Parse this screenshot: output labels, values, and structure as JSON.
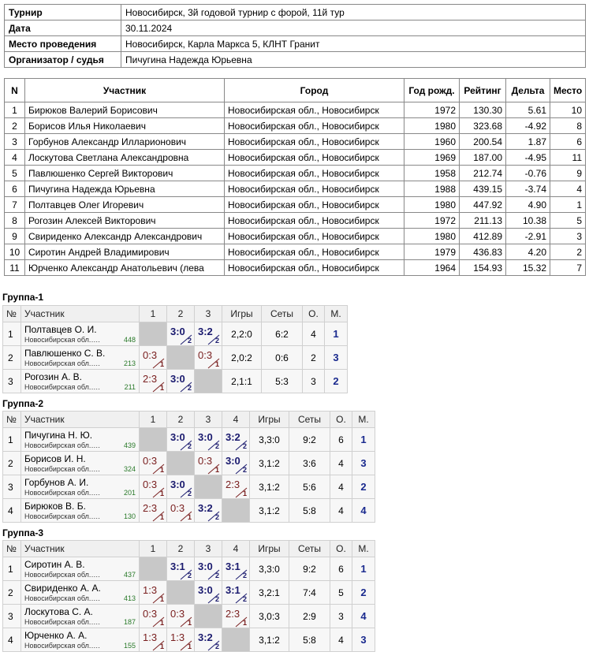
{
  "info": {
    "rows": [
      [
        "Турнир",
        "Новосибирск, 3й годовой турнир с форой, 11й тур"
      ],
      [
        "Дата",
        "30.11.2024"
      ],
      [
        "Место проведения",
        "Новосибирск, Карла Маркса 5, КЛНТ Гранит"
      ],
      [
        "Организатор / судья",
        "Пичугина Надежда Юрьевна"
      ]
    ]
  },
  "players": {
    "header": [
      "N",
      "Участник",
      "Город",
      "Год рожд.",
      "Рейтинг",
      "Дельта",
      "Место"
    ],
    "rows": [
      [
        "1",
        "Бирюков Валерий Борисович",
        "Новосибирская обл., Новосибирск",
        "1972",
        "130.30",
        "5.61",
        "10"
      ],
      [
        "2",
        "Борисов Илья Николаевич",
        "Новосибирская обл., Новосибирск",
        "1980",
        "323.68",
        "-4.92",
        "8"
      ],
      [
        "3",
        "Горбунов Александр Илларионович",
        "Новосибирская обл., Новосибирск",
        "1960",
        "200.54",
        "1.87",
        "6"
      ],
      [
        "4",
        "Лоскутова Светлана Александровна",
        "Новосибирская обл., Новосибирск",
        "1969",
        "187.00",
        "-4.95",
        "11"
      ],
      [
        "5",
        "Павлюшенко Сергей Викторович",
        "Новосибирская обл., Новосибирск",
        "1958",
        "212.74",
        "-0.76",
        "9"
      ],
      [
        "6",
        "Пичугина Надежда Юрьевна",
        "Новосибирская обл., Новосибирск",
        "1988",
        "439.15",
        "-3.74",
        "4"
      ],
      [
        "7",
        "Полтавцев Олег Игоревич",
        "Новосибирская обл., Новосибирск",
        "1980",
        "447.92",
        "4.90",
        "1"
      ],
      [
        "8",
        "Рогозин Алексей Викторович",
        "Новосибирская обл., Новосибирск",
        "1972",
        "211.13",
        "10.38",
        "5"
      ],
      [
        "9",
        "Свириденко Александр Александрович",
        "Новосибирская обл., Новосибирск",
        "1980",
        "412.89",
        "-2.91",
        "3"
      ],
      [
        "10",
        "Сиротин Андрей Владимирович",
        "Новосибирская обл., Новосибирск",
        "1979",
        "436.83",
        "4.20",
        "2"
      ],
      [
        "11",
        "Юрченко Александр Анатольевич (лева",
        "Новосибирская обл., Новосибирск",
        "1964",
        "154.93",
        "15.32",
        "7"
      ]
    ]
  },
  "groups": [
    {
      "title": "Группа-1",
      "header": [
        "№",
        "Участник",
        "1",
        "2",
        "3",
        "Игры",
        "Сеты",
        "О.",
        "М."
      ],
      "rows": [
        {
          "n": "1",
          "name": "Полтавцев О. И.",
          "city": "Новосибирская обл.….",
          "rating": "448",
          "cells": [
            null,
            {
              "score": "3:0",
              "points": 2
            },
            {
              "score": "3:2",
              "points": 2
            }
          ],
          "games": "2,2:0",
          "sets": "6:2",
          "points": "4",
          "place": "1"
        },
        {
          "n": "2",
          "name": "Павлюшенко С. В.",
          "city": "Новосибирская обл.….",
          "rating": "213",
          "cells": [
            {
              "score": "0:3",
              "points": 1
            },
            null,
            {
              "score": "0:3",
              "points": 1
            }
          ],
          "games": "2,0:2",
          "sets": "0:6",
          "points": "2",
          "place": "3"
        },
        {
          "n": "3",
          "name": "Рогозин А. В.",
          "city": "Новосибирская обл.….",
          "rating": "211",
          "cells": [
            {
              "score": "2:3",
              "points": 1
            },
            {
              "score": "3:0",
              "points": 2
            },
            null
          ],
          "games": "2,1:1",
          "sets": "5:3",
          "points": "3",
          "place": "2"
        }
      ]
    },
    {
      "title": "Группа-2",
      "header": [
        "№",
        "Участник",
        "1",
        "2",
        "3",
        "4",
        "Игры",
        "Сеты",
        "О.",
        "М."
      ],
      "rows": [
        {
          "n": "1",
          "name": "Пичугина Н. Ю.",
          "city": "Новосибирская обл.….",
          "rating": "439",
          "cells": [
            null,
            {
              "score": "3:0",
              "points": 2
            },
            {
              "score": "3:0",
              "points": 2
            },
            {
              "score": "3:2",
              "points": 2
            }
          ],
          "games": "3,3:0",
          "sets": "9:2",
          "points": "6",
          "place": "1"
        },
        {
          "n": "2",
          "name": "Борисов И. Н.",
          "city": "Новосибирская обл.….",
          "rating": "324",
          "cells": [
            {
              "score": "0:3",
              "points": 1
            },
            null,
            {
              "score": "0:3",
              "points": 1
            },
            {
              "score": "3:0",
              "points": 2
            }
          ],
          "games": "3,1:2",
          "sets": "3:6",
          "points": "4",
          "place": "3"
        },
        {
          "n": "3",
          "name": "Горбунов А. И.",
          "city": "Новосибирская обл.….",
          "rating": "201",
          "cells": [
            {
              "score": "0:3",
              "points": 1
            },
            {
              "score": "3:0",
              "points": 2
            },
            null,
            {
              "score": "2:3",
              "points": 1
            }
          ],
          "games": "3,1:2",
          "sets": "5:6",
          "points": "4",
          "place": "2"
        },
        {
          "n": "4",
          "name": "Бирюков В. Б.",
          "city": "Новосибирская обл.….",
          "rating": "130",
          "cells": [
            {
              "score": "2:3",
              "points": 1
            },
            {
              "score": "0:3",
              "points": 1
            },
            {
              "score": "3:2",
              "points": 2
            },
            null
          ],
          "games": "3,1:2",
          "sets": "5:8",
          "points": "4",
          "place": "4"
        }
      ]
    },
    {
      "title": "Группа-3",
      "header": [
        "№",
        "Участник",
        "1",
        "2",
        "3",
        "4",
        "Игры",
        "Сеты",
        "О.",
        "М."
      ],
      "rows": [
        {
          "n": "1",
          "name": "Сиротин А. В.",
          "city": "Новосибирская обл.….",
          "rating": "437",
          "cells": [
            null,
            {
              "score": "3:1",
              "points": 2
            },
            {
              "score": "3:0",
              "points": 2
            },
            {
              "score": "3:1",
              "points": 2
            }
          ],
          "games": "3,3:0",
          "sets": "9:2",
          "points": "6",
          "place": "1"
        },
        {
          "n": "2",
          "name": "Свириденко А. А.",
          "city": "Новосибирская обл.….",
          "rating": "413",
          "cells": [
            {
              "score": "1:3",
              "points": 1
            },
            null,
            {
              "score": "3:0",
              "points": 2
            },
            {
              "score": "3:1",
              "points": 2
            }
          ],
          "games": "3,2:1",
          "sets": "7:4",
          "points": "5",
          "place": "2"
        },
        {
          "n": "3",
          "name": "Лоскутова С. А.",
          "city": "Новосибирская обл.….",
          "rating": "187",
          "cells": [
            {
              "score": "0:3",
              "points": 1
            },
            {
              "score": "0:3",
              "points": 1
            },
            null,
            {
              "score": "2:3",
              "points": 1
            }
          ],
          "games": "3,0:3",
          "sets": "2:9",
          "points": "3",
          "place": "4"
        },
        {
          "n": "4",
          "name": "Юрченко А. А.",
          "city": "Новосибирская обл.….",
          "rating": "155",
          "cells": [
            {
              "score": "1:3",
              "points": 1
            },
            {
              "score": "1:3",
              "points": 1
            },
            {
              "score": "3:2",
              "points": 2
            },
            null
          ],
          "games": "3,1:2",
          "sets": "5:8",
          "points": "4",
          "place": "3"
        }
      ]
    }
  ]
}
